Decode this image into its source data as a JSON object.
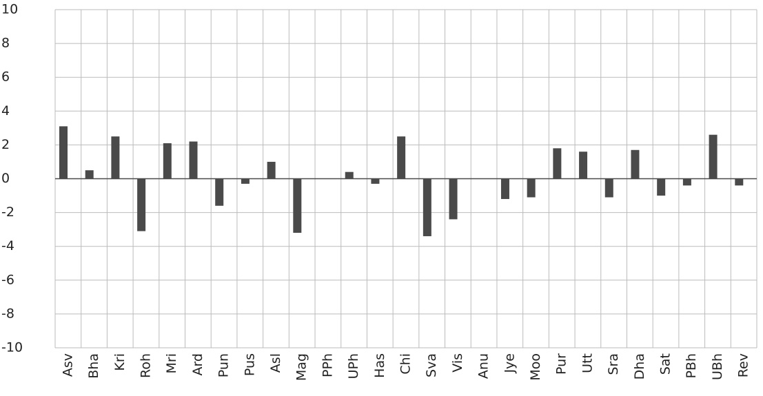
{
  "chart_data": {
    "type": "bar",
    "categories": [
      "Asv",
      "Bha",
      "Kri",
      "Roh",
      "Mri",
      "Ard",
      "Pun",
      "Pus",
      "Asl",
      "Mag",
      "PPh",
      "UPh",
      "Has",
      "Chi",
      "Sva",
      "Vis",
      "Anu",
      "Jye",
      "Moo",
      "Pur",
      "Utt",
      "Sra",
      "Dha",
      "Sat",
      "PBh",
      "UBh",
      "Rev"
    ],
    "values": [
      3.1,
      0.5,
      2.5,
      -3.1,
      2.1,
      2.2,
      -1.6,
      -0.3,
      1.0,
      -3.2,
      0,
      0.4,
      -0.3,
      2.5,
      -3.4,
      -2.4,
      0,
      -1.2,
      -1.1,
      1.8,
      1.6,
      -1.1,
      1.7,
      -1.0,
      -0.4,
      2.6,
      -0.4
    ],
    "color": "#4a4a4a",
    "ylim": [
      -10,
      10
    ],
    "yticks": [
      -10,
      -8,
      -6,
      -4,
      -2,
      0,
      2,
      4,
      6,
      8,
      10
    ],
    "grid": true
  }
}
